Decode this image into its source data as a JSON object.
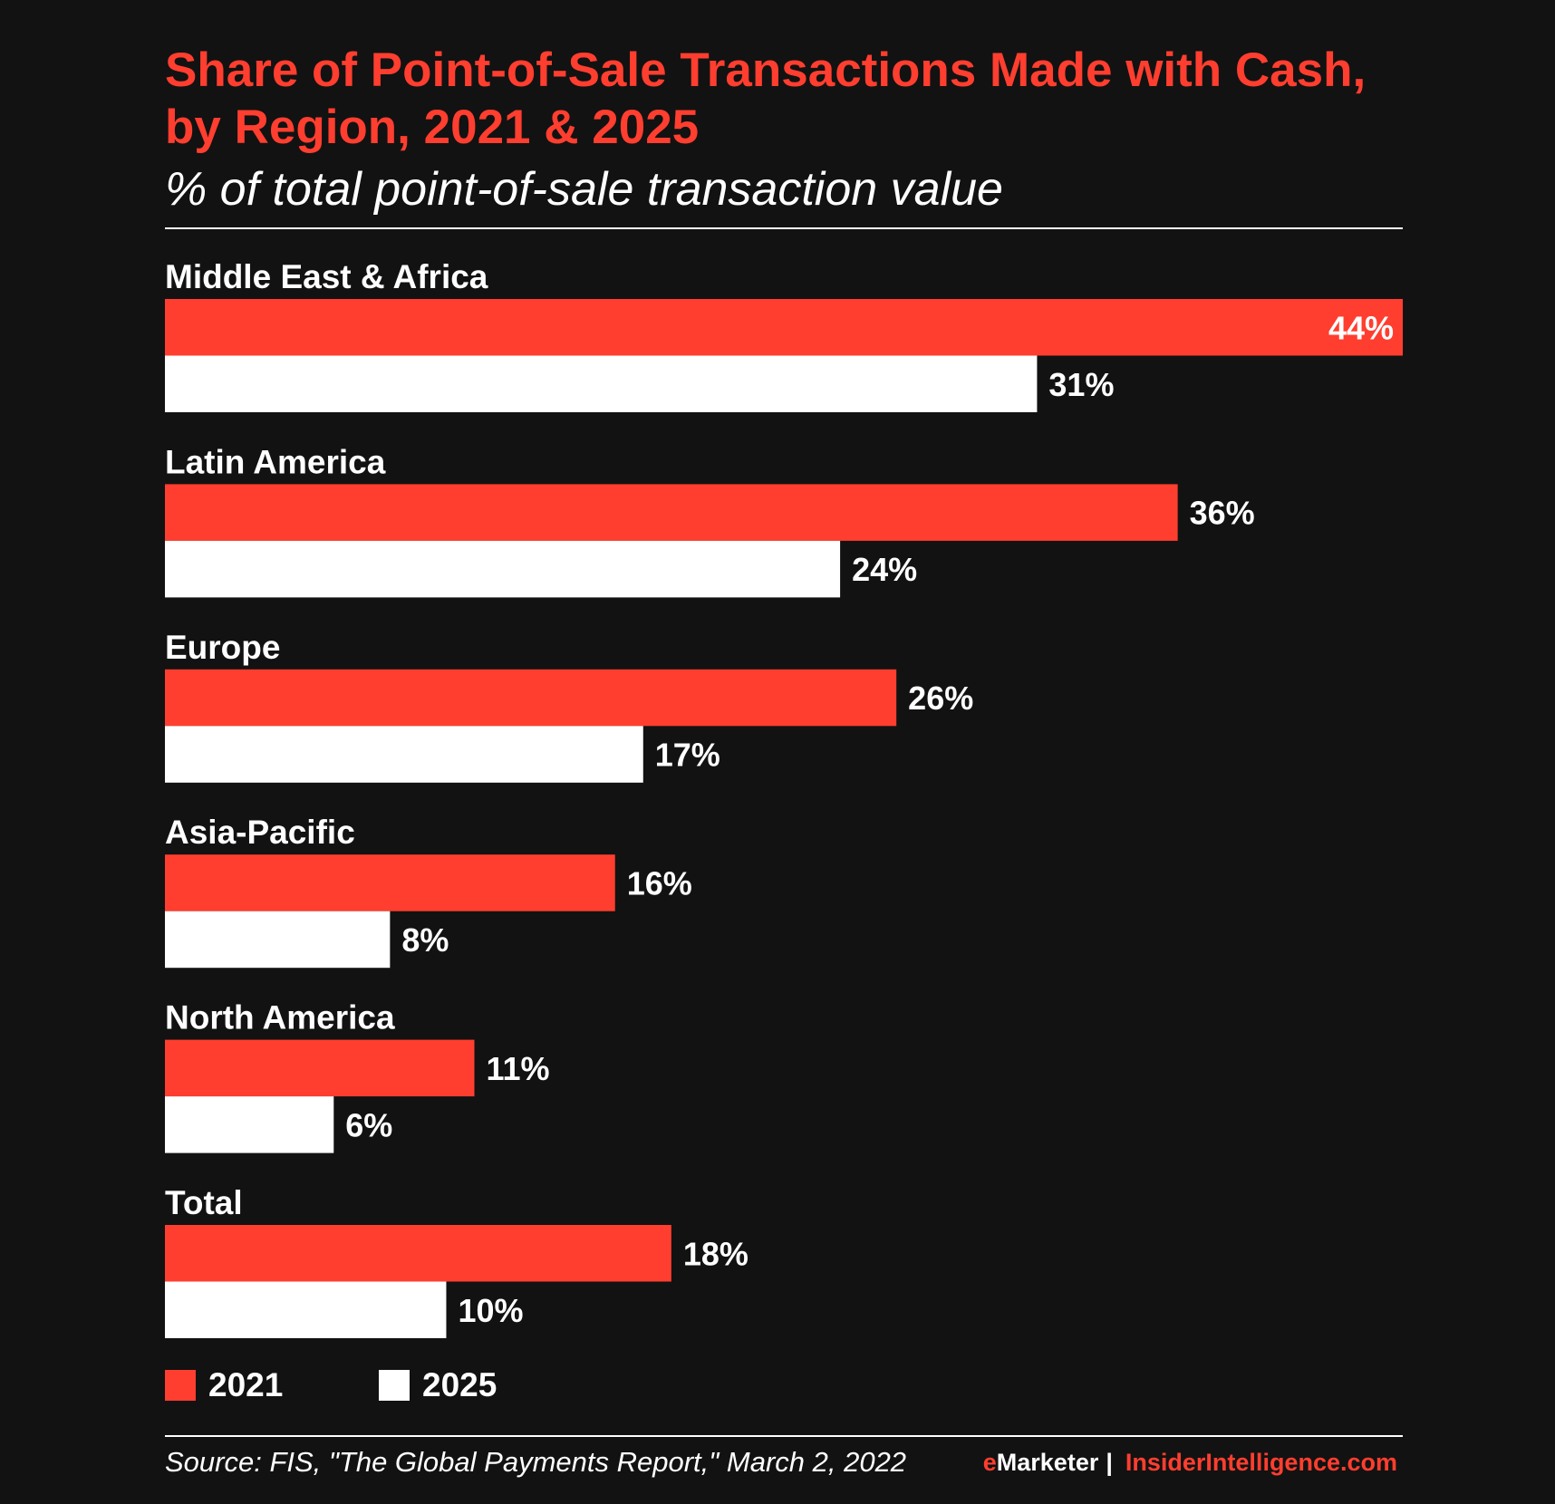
{
  "header": {
    "title": "Share of Point-of-Sale Transactions Made with Cash, by Region, 2021 & 2025",
    "subtitle": "% of total point-of-sale transaction value"
  },
  "colors": {
    "background": "#121212",
    "accent": "#ff3e2f",
    "series_2021": "#ff3e2f",
    "series_2025": "#ffffff",
    "text": "#ffffff"
  },
  "chart_data": {
    "type": "bar",
    "orientation": "horizontal",
    "title": "Share of Point-of-Sale Transactions Made with Cash, by Region, 2021 & 2025",
    "subtitle": "% of total point-of-sale transaction value",
    "categories": [
      "Middle East & Africa",
      "Latin America",
      "Europe",
      "Asia-Pacific",
      "North America",
      "Total"
    ],
    "series": [
      {
        "name": "2021",
        "color": "#ff3e2f",
        "values": [
          44,
          36,
          26,
          16,
          11,
          18
        ]
      },
      {
        "name": "2025",
        "color": "#ffffff",
        "values": [
          31,
          24,
          17,
          8,
          6,
          10
        ]
      }
    ],
    "value_suffix": "%",
    "xlim": [
      0,
      44
    ],
    "grid": false,
    "legend_position": "bottom-left"
  },
  "legend": {
    "items": [
      {
        "label": "2021",
        "color": "#ff3e2f"
      },
      {
        "label": "2025",
        "color": "#ffffff"
      }
    ]
  },
  "footer": {
    "source": "Source: FIS, \"The Global Payments Report,\" March 2, 2022",
    "brand_e": "e",
    "brand_name": "Marketer",
    "brand_separator": "|",
    "brand_site": "InsiderIntelligence.com"
  }
}
